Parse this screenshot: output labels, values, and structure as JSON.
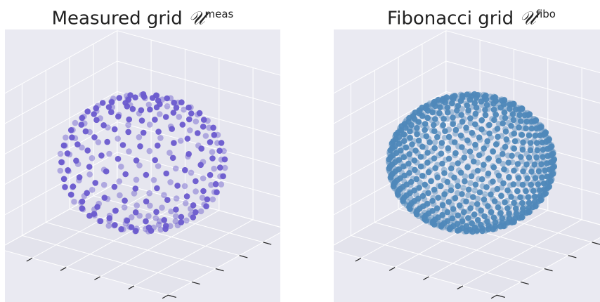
{
  "chart_data": [
    {
      "type": "scatter3d",
      "title": {
        "prefix": "Measured grid ",
        "symbol": "𝒰",
        "superscript": "meas"
      },
      "series": [
        {
          "color": "#6a5acd"
        }
      ],
      "grid": true,
      "background": "#eaeaf2",
      "grid_color": "#ffffff",
      "projection": "3d",
      "sampling": "latitude-longitude rings",
      "ring_polar_angles_deg": [
        12,
        24,
        36,
        48,
        60,
        72,
        84,
        96,
        108,
        120,
        132,
        144,
        156,
        168
      ],
      "points_per_ring": [
        12,
        16,
        20,
        22,
        24,
        24,
        24,
        24,
        24,
        24,
        22,
        20,
        16,
        12
      ],
      "tick_labels": []
    },
    {
      "type": "scatter3d",
      "title": {
        "prefix": "Fibonacci grid ",
        "symbol": "𝒰",
        "superscript": "fibo"
      },
      "series": [
        {
          "color": "#4f88b9"
        }
      ],
      "grid": true,
      "background": "#eaeaf2",
      "grid_color": "#ffffff",
      "projection": "3d",
      "sampling": "fibonacci lattice",
      "n_points": 900,
      "tick_labels": []
    }
  ]
}
